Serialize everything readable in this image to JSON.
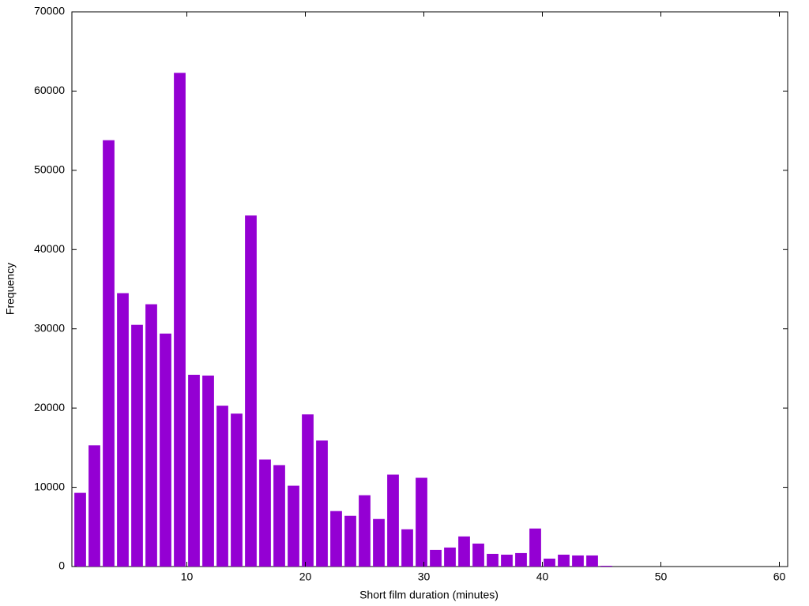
{
  "chart_data": {
    "type": "histogram",
    "x_label": "Short film duration (minutes)",
    "y_label": "Frequency",
    "color": "#9400d3",
    "bins": [
      0.4,
      1.6,
      2.8,
      4.0,
      5.2,
      6.4,
      7.6,
      8.8,
      10.0,
      11.2,
      12.4,
      13.6,
      14.8,
      16.0,
      17.2,
      18.4,
      19.6,
      20.8,
      22.0,
      23.2,
      24.4,
      25.6,
      26.8,
      28.0,
      29.2,
      30.4,
      31.6,
      32.8,
      34.0,
      35.2,
      36.4,
      37.6,
      38.8,
      40.0,
      41.2,
      42.4,
      43.6,
      44.8,
      46.0
    ],
    "values": [
      9300,
      15300,
      53800,
      34500,
      30500,
      33100,
      29400,
      62300,
      24200,
      24100,
      20300,
      19300,
      44300,
      13500,
      12800,
      10200,
      19200,
      15900,
      7000,
      6400,
      9000,
      6000,
      11600,
      4700,
      11200,
      2100,
      2400,
      3800,
      2900,
      1600,
      1500,
      1700,
      4800,
      1000,
      1500,
      1400,
      1400,
      100
    ],
    "xlim": [
      0.3,
      60.7
    ],
    "ylim": [
      0,
      70000
    ],
    "xticks": [
      10,
      20,
      30,
      40,
      50,
      60
    ],
    "yticks": [
      0,
      10000,
      20000,
      30000,
      40000,
      50000,
      60000,
      70000
    ]
  }
}
